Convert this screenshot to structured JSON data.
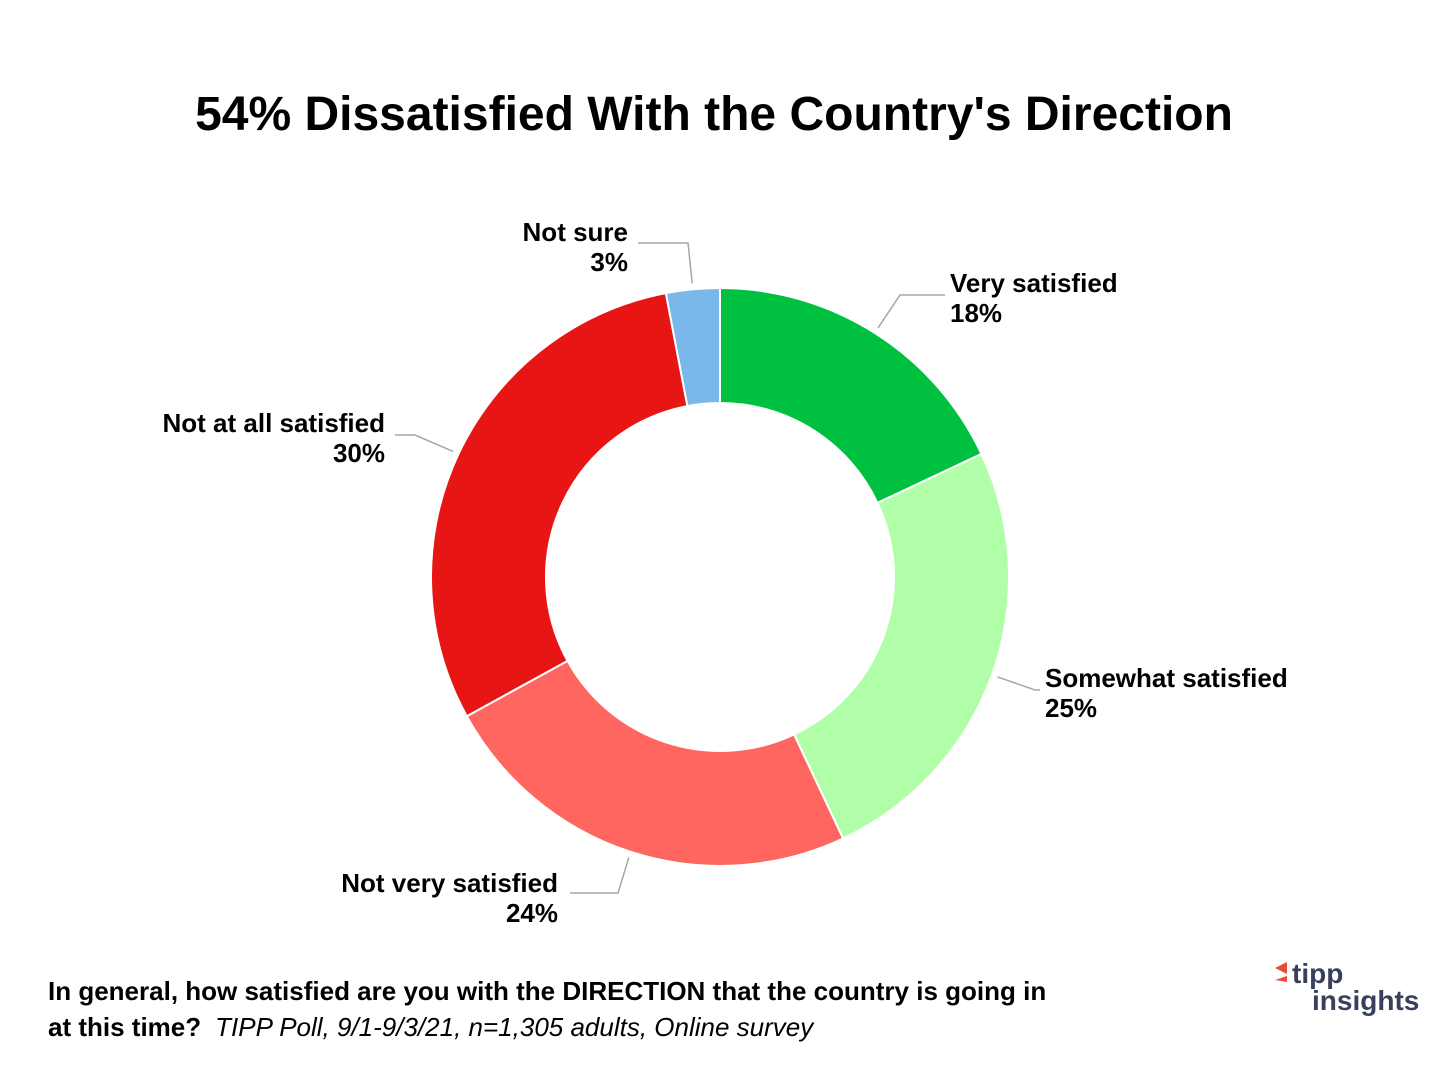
{
  "chart_data": {
    "type": "donut",
    "title": "54% Dissatisfied With the Country's Direction",
    "categories": [
      "Very satisfied",
      "Somewhat satisfied",
      "Not very satisfied",
      "Not at all satisfied",
      "Not sure"
    ],
    "values": [
      18,
      25,
      24,
      30,
      3
    ],
    "value_labels": [
      "18%",
      "25%",
      "24%",
      "30%",
      "3%"
    ],
    "colors": [
      "#00c040",
      "#b0ffa8",
      "#ff6660",
      "#e81515",
      "#7ab8ea"
    ],
    "note": [
      "In general, how satisfied are you with the DIRECTION that the country is going in",
      "at this time?"
    ],
    "source": "TIPP Poll, 9/1-9/3/21, n=1,305 adults, Online survey"
  },
  "logo": {
    "line1": "tipp",
    "line2": "insights"
  }
}
